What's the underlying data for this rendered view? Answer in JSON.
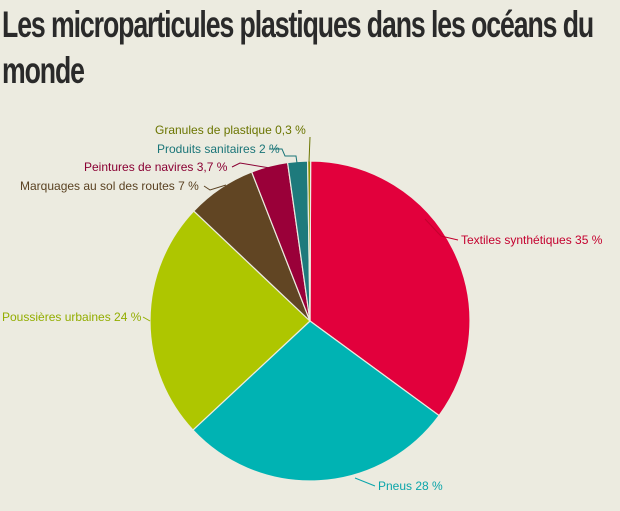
{
  "title": "Les microparticules plastiques dans les océans du monde",
  "chart_data": {
    "type": "pie",
    "title": "Les microparticules plastiques dans les océans du monde",
    "unit": "%",
    "slices": [
      {
        "label": "Textiles synthétiques 35 %",
        "value": 35,
        "color": "#e2003c"
      },
      {
        "label": "Pneus 28 %",
        "value": 28,
        "color": "#00b3b3"
      },
      {
        "label": "Poussières urbaines 24 %",
        "value": 24,
        "color": "#aec600"
      },
      {
        "label": "Marquages au sol des routes 7 %",
        "value": 7,
        "color": "#614523"
      },
      {
        "label": "Peintures de navires 3,7 %",
        "value": 3.7,
        "color": "#9a0039"
      },
      {
        "label": "Produits sanitaires 2 %",
        "value": 2,
        "color": "#1e7a7c"
      },
      {
        "label": "Granules de plastique 0,3 %",
        "value": 0.3,
        "color": "#8a8f00"
      }
    ]
  },
  "label_colors": [
    "#c4002e",
    "#0aa5aa",
    "#93ad00",
    "#5a4222",
    "#8a0033",
    "#1a7578",
    "#6b7500"
  ]
}
